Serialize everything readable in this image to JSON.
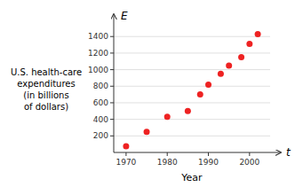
{
  "chart_data": {
    "type": "scatter",
    "x_label": "Year",
    "y_label": [
      "U.S. health-care",
      "expenditures",
      "(in billions",
      "of dollars)"
    ],
    "annotations": [
      "E",
      "t"
    ],
    "x": [
      1970,
      1975,
      1980,
      1985,
      1988,
      1990,
      1993,
      1995,
      1998,
      2000,
      2002
    ],
    "values": [
      75,
      250,
      430,
      500,
      700,
      820,
      950,
      1050,
      1150,
      1310,
      1430
    ],
    "color": "#ee2222",
    "xlim": [
      1967,
      2005
    ],
    "ylim": [
      0,
      1520
    ],
    "xticks": [
      1970,
      1980,
      1990,
      2000
    ],
    "yticks": [
      200,
      400,
      600,
      800,
      1000,
      1200,
      1400
    ],
    "grid": "y"
  }
}
